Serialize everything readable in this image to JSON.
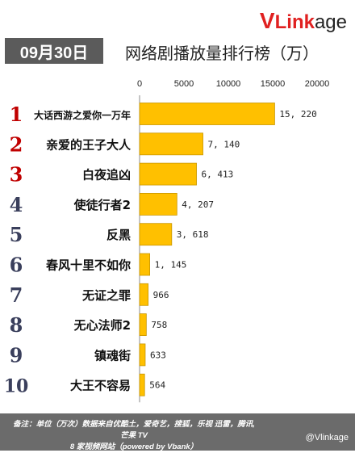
{
  "brand": {
    "logo_v": "V",
    "logo_link": "Link",
    "logo_rest": "age"
  },
  "header": {
    "date": "09月30日",
    "title": "网络剧播放量排行榜（万）"
  },
  "footer": {
    "line1": "备注：单位（万次）数据来自优酷土，爱奇艺，搜狐，乐视 迅雷，腾讯,芒果 TV",
    "line2": "8 家视频网站（powered by Vbank）",
    "weibo": "@Vlinkage"
  },
  "colors": {
    "bar": "#ffc000",
    "bar_edge": "#c89600",
    "rank_top": "#c00000",
    "rank_other": "#3a3f5c",
    "footer_bg": "#6b6b6b"
  },
  "chart_data": {
    "type": "bar",
    "orientation": "horizontal",
    "xlim": [
      0,
      20000
    ],
    "xticks": [
      0,
      5000,
      10000,
      15000,
      20000
    ],
    "axis_position": "top",
    "categories": [
      "大话西游之爱你一万年",
      "亲爱的王子大人",
      "白夜追凶",
      "使徒行者2",
      "反黑",
      "春风十里不如你",
      "无证之罪",
      "无心法师2",
      "镇魂街",
      "大王不容易"
    ],
    "ranks": [
      "1",
      "2",
      "3",
      "4",
      "5",
      "6",
      "7",
      "8",
      "9",
      "10"
    ],
    "values": [
      15220,
      7140,
      6413,
      4207,
      3618,
      1145,
      966,
      758,
      633,
      564
    ],
    "value_labels": [
      "15, 220",
      "7, 140",
      "6, 413",
      "4, 207",
      "3, 618",
      "1, 145",
      "966",
      "758",
      "633",
      "564"
    ]
  }
}
